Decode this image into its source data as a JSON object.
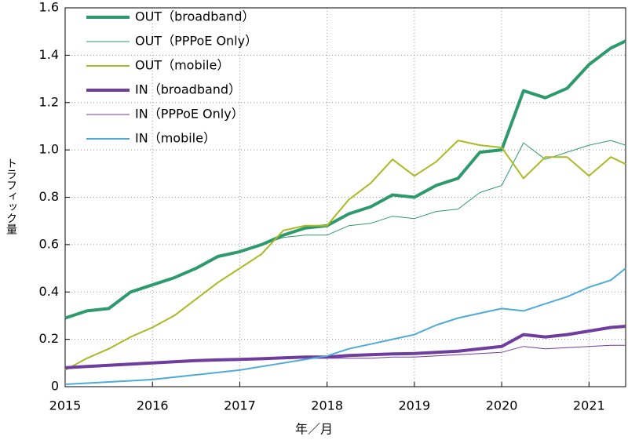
{
  "chart_data": {
    "type": "line",
    "x_label": "年／月",
    "y_label": "トラフィック量",
    "xlim": [
      2015,
      2021.42
    ],
    "xticks": [
      2015,
      2016,
      2017,
      2018,
      2019,
      2020,
      2021
    ],
    "ylim": [
      0,
      1.6
    ],
    "yticks": [
      0,
      0.2,
      0.4,
      0.6,
      0.8,
      {
        "value": 1,
        "label": "1.0"
      },
      1.2,
      1.4,
      1.6
    ],
    "grid": true,
    "legend": "upper left",
    "x": [
      2015,
      2015.25,
      2015.5,
      2015.75,
      2016,
      2016.25,
      2016.5,
      2016.75,
      2017,
      2017.25,
      2017.5,
      2017.75,
      2018,
      2018.25,
      2018.5,
      2018.75,
      2019,
      2019.25,
      2019.5,
      2019.75,
      2020,
      2020.25,
      2020.5,
      2020.75,
      2021,
      2021.25,
      2021.42
    ],
    "series": [
      {
        "name": "OUT（broadband）",
        "color": "#2e9a6c",
        "line_width": 4,
        "values": [
          0.29,
          0.32,
          0.33,
          0.4,
          0.43,
          0.46,
          0.5,
          0.55,
          0.57,
          0.6,
          0.64,
          0.67,
          0.68,
          0.73,
          0.76,
          0.81,
          0.8,
          0.85,
          0.88,
          0.99,
          1.0,
          1.25,
          1.22,
          1.26,
          1.36,
          1.43,
          1.46
        ]
      },
      {
        "name": "OUT（PPPoE Only）",
        "color": "#2e9a6c",
        "line_width": 1,
        "values": [
          0.29,
          0.32,
          0.33,
          0.4,
          0.43,
          0.46,
          0.5,
          0.55,
          0.57,
          0.6,
          0.63,
          0.64,
          0.64,
          0.68,
          0.69,
          0.72,
          0.71,
          0.74,
          0.75,
          0.82,
          0.85,
          1.03,
          0.96,
          0.99,
          1.02,
          1.04,
          1.02
        ]
      },
      {
        "name": "OUT（mobile）",
        "color": "#a9ba22",
        "line_width": 2,
        "values": [
          0.07,
          0.12,
          0.16,
          0.21,
          0.25,
          0.3,
          0.37,
          0.44,
          0.5,
          0.56,
          0.66,
          0.68,
          0.68,
          0.79,
          0.86,
          0.96,
          0.89,
          0.95,
          1.04,
          1.02,
          1.01,
          0.88,
          0.97,
          0.97,
          0.89,
          0.97,
          0.94
        ]
      },
      {
        "name": "IN（broadband）",
        "color": "#6f3d9e",
        "line_width": 4,
        "values": [
          0.08,
          0.085,
          0.09,
          0.095,
          0.1,
          0.105,
          0.11,
          0.113,
          0.115,
          0.118,
          0.122,
          0.125,
          0.125,
          0.132,
          0.135,
          0.138,
          0.14,
          0.145,
          0.15,
          0.16,
          0.17,
          0.22,
          0.21,
          0.22,
          0.235,
          0.25,
          0.255
        ]
      },
      {
        "name": "IN（PPPoE Only）",
        "color": "#6f3d9e",
        "line_width": 1,
        "values": [
          0.08,
          0.085,
          0.09,
          0.095,
          0.1,
          0.105,
          0.11,
          0.113,
          0.115,
          0.118,
          0.122,
          0.12,
          0.12,
          0.12,
          0.12,
          0.125,
          0.125,
          0.13,
          0.135,
          0.14,
          0.145,
          0.17,
          0.16,
          0.165,
          0.17,
          0.175,
          0.175
        ]
      },
      {
        "name": "IN（mobile）",
        "color": "#4eaad9",
        "line_width": 2,
        "values": [
          0.01,
          0.015,
          0.02,
          0.025,
          0.03,
          0.04,
          0.05,
          0.06,
          0.07,
          0.085,
          0.1,
          0.115,
          0.13,
          0.16,
          0.18,
          0.2,
          0.22,
          0.26,
          0.29,
          0.31,
          0.33,
          0.32,
          0.35,
          0.38,
          0.42,
          0.45,
          0.5
        ]
      }
    ]
  }
}
